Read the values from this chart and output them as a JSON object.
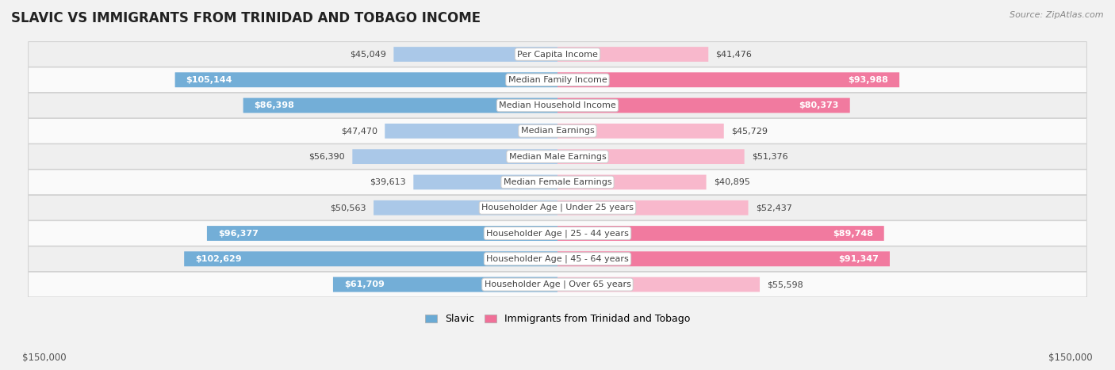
{
  "title": "SLAVIC VS IMMIGRANTS FROM TRINIDAD AND TOBAGO INCOME",
  "source": "Source: ZipAtlas.com",
  "categories": [
    "Per Capita Income",
    "Median Family Income",
    "Median Household Income",
    "Median Earnings",
    "Median Male Earnings",
    "Median Female Earnings",
    "Householder Age | Under 25 years",
    "Householder Age | 25 - 44 years",
    "Householder Age | 45 - 64 years",
    "Householder Age | Over 65 years"
  ],
  "slavic_values": [
    45049,
    105144,
    86398,
    47470,
    56390,
    39613,
    50563,
    96377,
    102629,
    61709
  ],
  "trinidad_values": [
    41476,
    93988,
    80373,
    45729,
    51376,
    40895,
    52437,
    89748,
    91347,
    55598
  ],
  "slavic_labels": [
    "$45,049",
    "$105,144",
    "$86,398",
    "$47,470",
    "$56,390",
    "$39,613",
    "$50,563",
    "$96,377",
    "$102,629",
    "$61,709"
  ],
  "trinidad_labels": [
    "$41,476",
    "$93,988",
    "$80,373",
    "$45,729",
    "$51,376",
    "$40,895",
    "$52,437",
    "$89,748",
    "$91,347",
    "$55,598"
  ],
  "max_value": 150000,
  "slavic_light": "#aac8e8",
  "slavic_dark": "#6aaad4",
  "trinidad_light": "#f8b8cc",
  "trinidad_dark": "#f07098",
  "bg_color": "#f2f2f2",
  "row_bg_even": "#efefef",
  "row_bg_odd": "#fafafa",
  "cat_label_color": "#444444",
  "title_color": "#222222",
  "source_color": "#888888",
  "axis_label_color": "#555555",
  "legend_slavic": "Slavic",
  "legend_trinidad": "Immigrants from Trinidad and Tobago",
  "xlabel_left": "$150,000",
  "xlabel_right": "$150,000",
  "inside_label_threshold": 60000,
  "cat_fontsize": 8.0,
  "val_fontsize": 8.0,
  "title_fontsize": 12,
  "source_fontsize": 8
}
